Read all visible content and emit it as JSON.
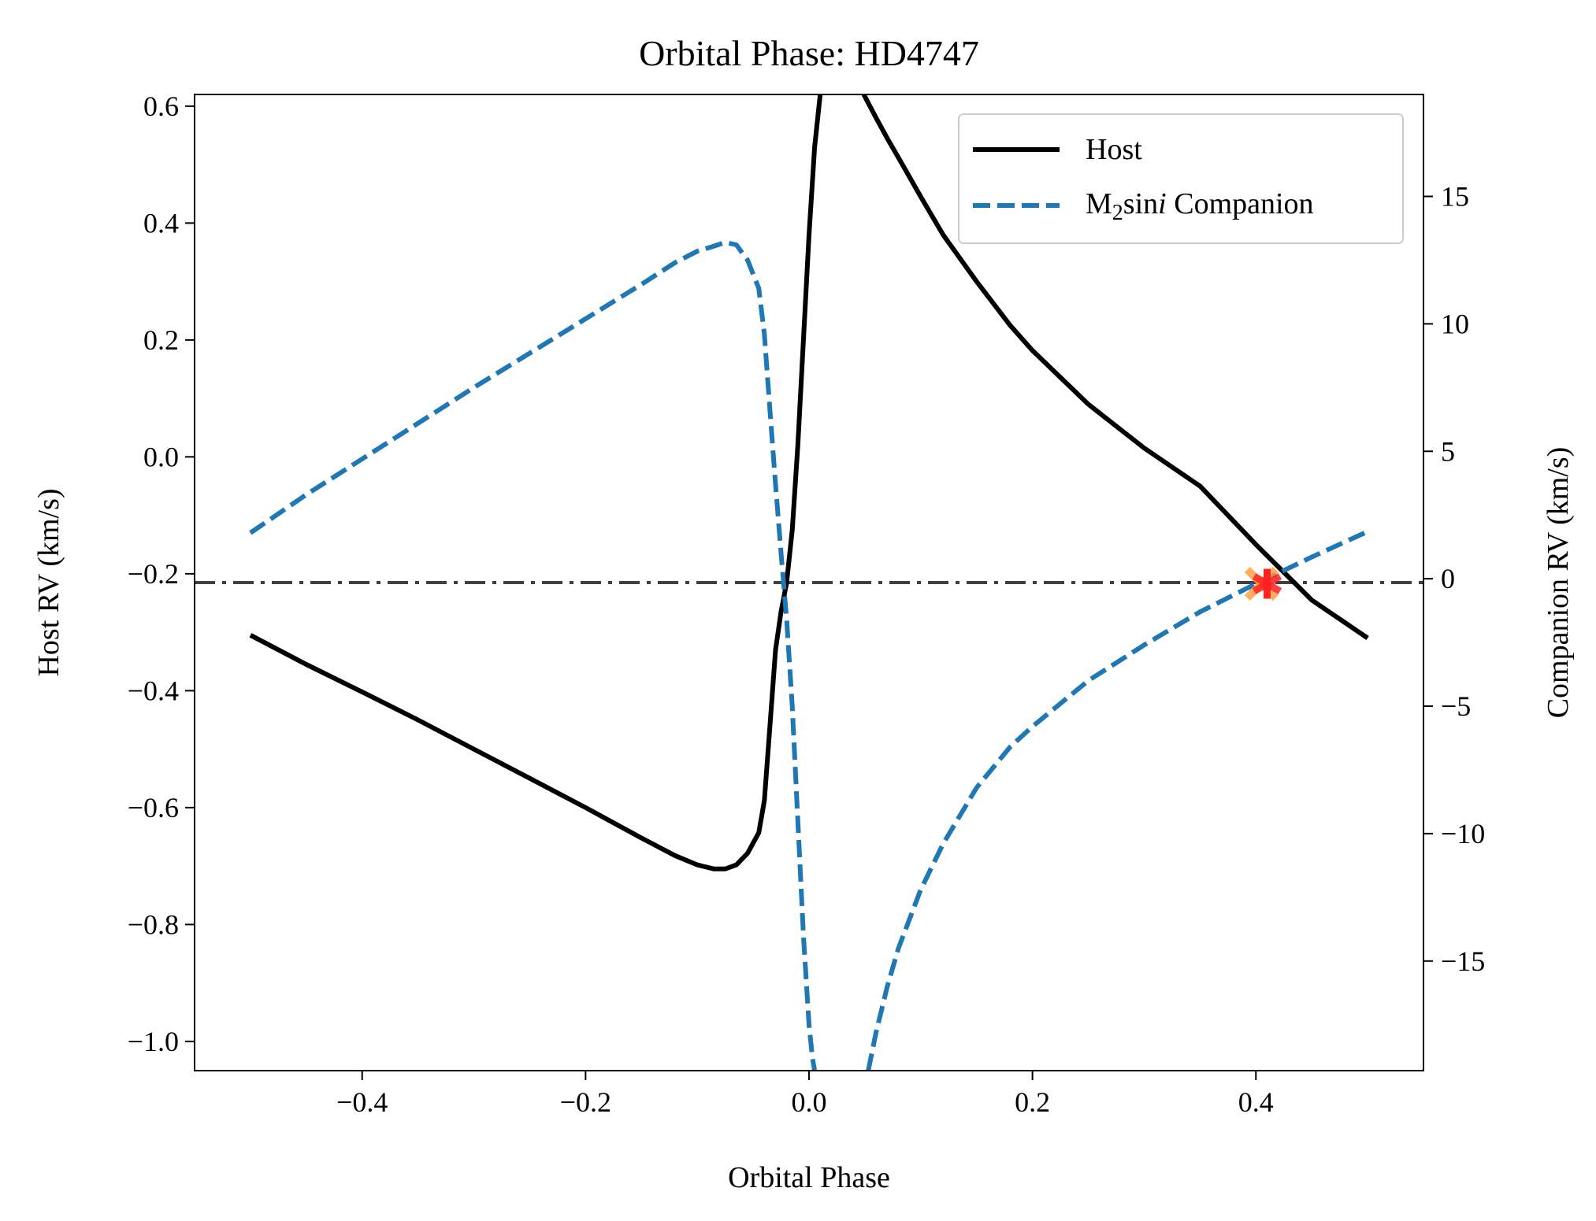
{
  "chart_data": {
    "type": "line",
    "title": "Orbital Phase: HD4747",
    "xlabel": "Orbital Phase",
    "ylabel_left": "Host RV (km/s)",
    "ylabel_right": "Companion RV (km/s)",
    "xlim": [
      -0.55,
      0.55
    ],
    "ylim_left": [
      -1.05,
      0.62
    ],
    "ylim_right": [
      -19.3,
      19.0
    ],
    "x_ticks": [
      "−0.4",
      "−0.2",
      "0.0",
      "0.2",
      "0.4"
    ],
    "x_tick_values": [
      -0.4,
      -0.2,
      0.0,
      0.2,
      0.4
    ],
    "y_left_ticks": [
      "0.6",
      "0.4",
      "0.2",
      "0.0",
      "−0.2",
      "−0.4",
      "−0.6",
      "−0.8",
      "−1.0"
    ],
    "y_left_tick_values": [
      0.6,
      0.4,
      0.2,
      0.0,
      -0.2,
      -0.4,
      -0.6,
      -0.8,
      -1.0
    ],
    "y_right_ticks": [
      "15",
      "10",
      "5",
      "0",
      "−5",
      "−10",
      "−15"
    ],
    "y_right_tick_values": [
      15,
      10,
      5,
      0,
      -5,
      -10,
      -15
    ],
    "grid": false,
    "legend_position": "top-right",
    "series": [
      {
        "name": "Host",
        "axis": "left",
        "color": "#000000",
        "style": "solid",
        "x": [
          -0.5,
          -0.45,
          -0.4,
          -0.35,
          -0.3,
          -0.25,
          -0.2,
          -0.15,
          -0.12,
          -0.1,
          -0.085,
          -0.075,
          -0.065,
          -0.055,
          -0.045,
          -0.04,
          -0.035,
          -0.03,
          -0.025,
          -0.02,
          -0.015,
          -0.01,
          -0.005,
          0.0,
          0.005,
          0.01
        ],
        "y": [
          -0.305,
          -0.355,
          -0.402,
          -0.45,
          -0.5,
          -0.55,
          -0.6,
          -0.652,
          -0.682,
          -0.698,
          -0.705,
          -0.705,
          -0.698,
          -0.678,
          -0.643,
          -0.588,
          -0.46,
          -0.33,
          -0.265,
          -0.215,
          -0.125,
          0.02,
          0.2,
          0.38,
          0.53,
          0.62
        ]
      },
      {
        "name": "Host",
        "axis": "left",
        "color": "#000000",
        "style": "solid",
        "x": [
          0.049,
          0.06,
          0.07,
          0.08,
          0.1,
          0.12,
          0.15,
          0.18,
          0.2,
          0.25,
          0.3,
          0.35,
          0.4,
          0.45,
          0.5
        ],
        "y": [
          0.62,
          0.58,
          0.545,
          0.512,
          0.445,
          0.38,
          0.3,
          0.225,
          0.182,
          0.09,
          0.015,
          -0.05,
          -0.15,
          -0.245,
          -0.31
        ]
      },
      {
        "name": "M₂sin i Companion",
        "axis": "right",
        "color": "#1f77b4",
        "style": "dashed",
        "x": [
          -0.5,
          -0.45,
          -0.4,
          -0.35,
          -0.3,
          -0.25,
          -0.2,
          -0.15,
          -0.12,
          -0.1,
          -0.085,
          -0.075,
          -0.065,
          -0.055,
          -0.045,
          -0.04,
          -0.035,
          -0.03,
          -0.025,
          -0.02,
          -0.015,
          -0.01,
          -0.005,
          0.0,
          0.003,
          0.005
        ],
        "y": [
          1.8,
          3.3,
          4.7,
          6.1,
          7.5,
          8.85,
          10.2,
          11.55,
          12.4,
          12.85,
          13.05,
          13.2,
          13.1,
          12.5,
          11.4,
          9.6,
          6.6,
          3.7,
          1.0,
          -1.6,
          -5.0,
          -9.5,
          -14.0,
          -17.5,
          -18.8,
          -19.3
        ]
      },
      {
        "name": "M₂sin i Companion",
        "axis": "right",
        "color": "#1f77b4",
        "style": "dashed",
        "x": [
          0.053,
          0.06,
          0.07,
          0.08,
          0.1,
          0.12,
          0.15,
          0.18,
          0.2,
          0.25,
          0.3,
          0.35,
          0.4,
          0.45,
          0.5
        ],
        "y": [
          -19.3,
          -17.8,
          -16.0,
          -14.5,
          -12.2,
          -10.4,
          -8.2,
          -6.6,
          -5.8,
          -4.0,
          -2.6,
          -1.3,
          -0.2,
          0.85,
          1.85
        ]
      }
    ],
    "reference_line": {
      "axis": "left",
      "y": -0.215,
      "color": "#404040",
      "style": "dashdot"
    },
    "markers": [
      {
        "x": 0.405,
        "y": -0.217,
        "axis": "left",
        "symbol": "x",
        "color": "#ff9a3c"
      },
      {
        "x": 0.41,
        "y": -0.217,
        "axis": "left",
        "symbol": "*",
        "color": "#ff2020"
      }
    ],
    "legend": [
      {
        "label": "Host",
        "color": "#000000",
        "style": "solid"
      },
      {
        "label_main": "M",
        "label_sub": "2",
        "label_mid": "sin",
        "label_italic": "i",
        "label_tail": " Companion",
        "color": "#1f77b4",
        "style": "dashed"
      }
    ]
  }
}
